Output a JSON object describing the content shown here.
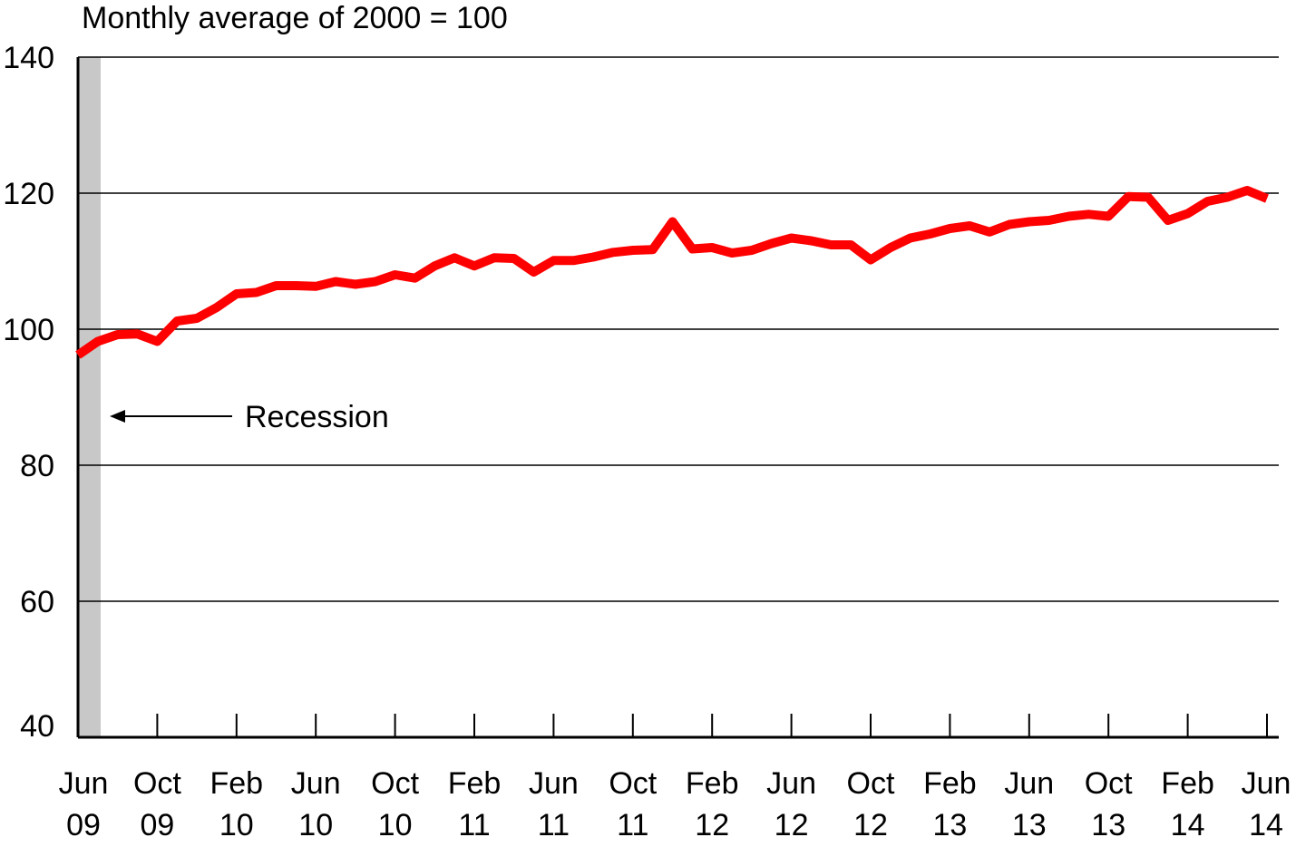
{
  "chart_data": {
    "type": "line",
    "unit_label": "Monthly average of 2000 = 100",
    "ylim": [
      40,
      140
    ],
    "yticks": [
      40,
      60,
      80,
      100,
      120,
      140
    ],
    "grid": true,
    "xticks": [
      {
        "index": 0,
        "line1": "Jun",
        "line2": "09"
      },
      {
        "index": 4,
        "line1": "Oct",
        "line2": "09"
      },
      {
        "index": 8,
        "line1": "Feb",
        "line2": "10"
      },
      {
        "index": 12,
        "line1": "Jun",
        "line2": "10"
      },
      {
        "index": 16,
        "line1": "Oct",
        "line2": "10"
      },
      {
        "index": 20,
        "line1": "Feb",
        "line2": "11"
      },
      {
        "index": 24,
        "line1": "Jun",
        "line2": "11"
      },
      {
        "index": 28,
        "line1": "Oct",
        "line2": "11"
      },
      {
        "index": 32,
        "line1": "Feb",
        "line2": "12"
      },
      {
        "index": 36,
        "line1": "Jun",
        "line2": "12"
      },
      {
        "index": 40,
        "line1": "Oct",
        "line2": "12"
      },
      {
        "index": 44,
        "line1": "Feb",
        "line2": "13"
      },
      {
        "index": 48,
        "line1": "Jun",
        "line2": "13"
      },
      {
        "index": 52,
        "line1": "Oct",
        "line2": "13"
      },
      {
        "index": 56,
        "line1": "Feb",
        "line2": "14"
      },
      {
        "index": 60,
        "line1": "Jun",
        "line2": "14"
      }
    ],
    "x_start": "2009-06",
    "x_end": "2014-06",
    "series": [
      {
        "color": "#ff0000",
        "values": [
          96.2,
          98.2,
          99.2,
          99.3,
          98.2,
          101.2,
          101.6,
          103.2,
          105.2,
          105.4,
          106.4,
          106.4,
          106.3,
          107.0,
          106.6,
          107.0,
          108.0,
          107.5,
          109.3,
          110.5,
          109.3,
          110.5,
          110.4,
          108.4,
          110.1,
          110.1,
          110.6,
          111.3,
          111.6,
          111.7,
          115.8,
          111.8,
          112.0,
          111.2,
          111.6,
          112.6,
          113.4,
          113.0,
          112.4,
          112.4,
          110.2,
          112.0,
          113.4,
          114.0,
          114.8,
          115.2,
          114.3,
          115.4,
          115.8,
          116.0,
          116.6,
          116.9,
          116.6,
          119.5,
          119.4,
          116.0,
          117.0,
          118.8,
          119.4,
          120.4,
          119.2
        ]
      }
    ],
    "recession_band": {
      "start": "2009-06",
      "end": "2009-06",
      "color": "#c8c8c8"
    },
    "annotation": {
      "text": "Recession"
    }
  }
}
